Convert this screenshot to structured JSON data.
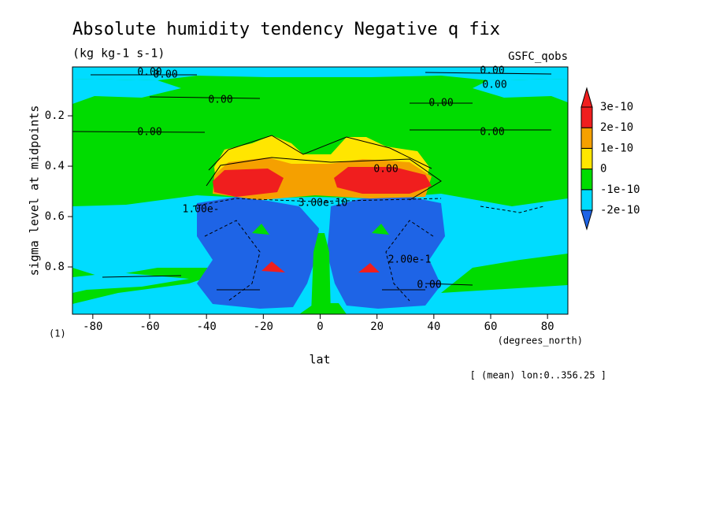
{
  "chart_data": {
    "type": "contour",
    "title": "Absolute humidity tendency Negative q fix",
    "subtitle": "(kg kg-1 s-1)",
    "source": "GSFC_qobs",
    "y_label": "sigma level at midpoints",
    "x_label": "lat",
    "x_units": "(degrees_north)",
    "y_units": "(1)",
    "note": "[ (mean) lon:0..356.25 ]",
    "xlim": [
      -87.16,
      87.16
    ],
    "xticks": [
      -80,
      -60,
      -40,
      -20,
      0,
      20,
      40,
      60,
      80
    ],
    "ylim": [
      0.006,
      0.9875
    ],
    "y_inverted": true,
    "yticks": [
      0.2,
      0.4,
      0.6,
      0.8
    ],
    "levels": [
      -2e-10,
      -1e-10,
      0,
      1e-10,
      2e-10,
      3e-10
    ],
    "colors": [
      "#1e64e6",
      "#00dcff",
      "#00dc00",
      "#ffe600",
      "#f5a000",
      "#f01e1e"
    ],
    "contour_labels": [
      "0.00",
      "0.00",
      "0.00",
      "0.00",
      "0.00",
      "0.00",
      "0.00",
      "0.00",
      "0.00",
      "3.00e-10",
      "2.00e-1",
      "1.00e-",
      "0.00"
    ]
  }
}
